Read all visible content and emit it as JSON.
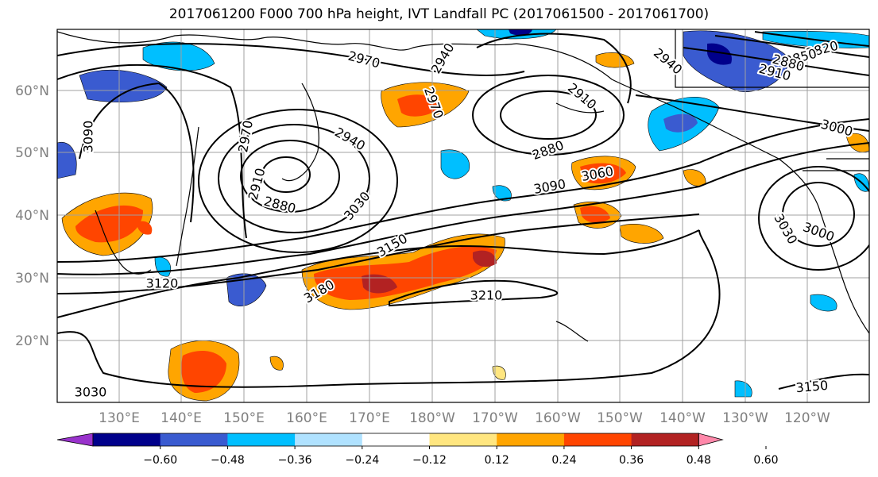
{
  "title": "2017061200 F000 700 hPa height, IVT Landfall PC (2017061500 - 2017061700)",
  "lat_labels": [
    "60°N",
    "50°N",
    "40°N",
    "30°N",
    "20°N"
  ],
  "lon_labels": [
    "130°E",
    "140°E",
    "150°E",
    "160°E",
    "170°E",
    "180°W",
    "170°W",
    "160°W",
    "150°W",
    "140°W",
    "130°W",
    "120°W"
  ],
  "contour_labels": [
    "2970",
    "2940",
    "2910",
    "2880",
    "2970",
    "2940",
    "2910",
    "2880",
    "3090",
    "2970",
    "3030",
    "3150",
    "3180",
    "3120",
    "3210",
    "3090",
    "3060",
    "2940",
    "2820",
    "2850",
    "2880",
    "2910",
    "3000",
    "3030",
    "3000",
    "3150",
    "3030"
  ],
  "colorbar": {
    "colors": [
      "#9932cc",
      "#00008b",
      "#3a5bd0",
      "#00bfff",
      "#b0e2ff",
      "#ffffff",
      "#ffe680",
      "#ffa500",
      "#ff4500",
      "#b22222",
      "#ff88aa"
    ],
    "labels": [
      "−0.60",
      "−0.48",
      "−0.36",
      "−0.24",
      "−0.12",
      "0.12",
      "0.24",
      "0.36",
      "0.48",
      "0.60"
    ]
  }
}
